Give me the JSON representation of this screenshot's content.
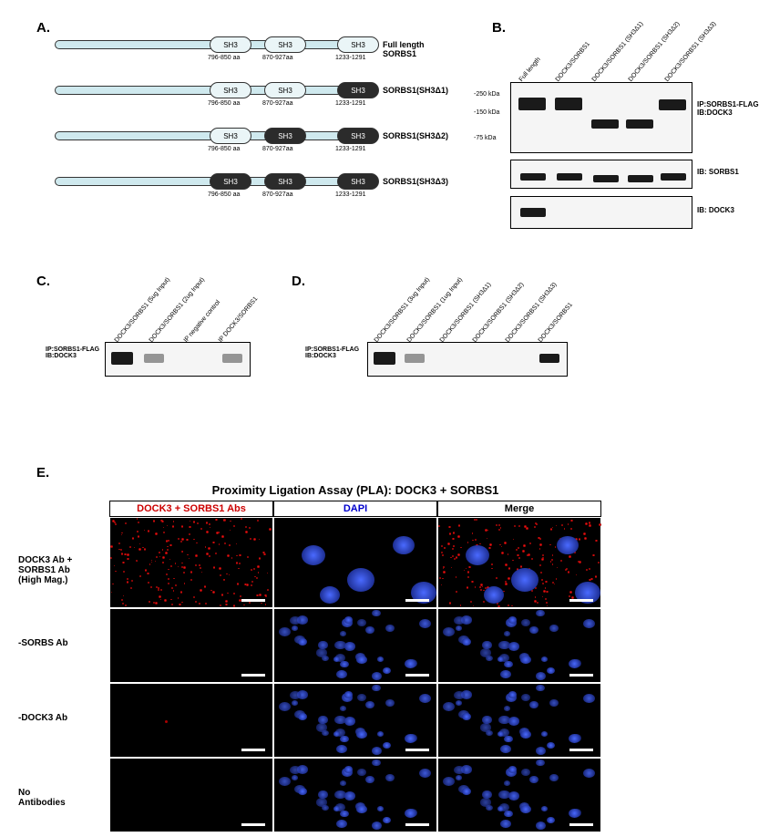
{
  "panelA": {
    "label": "A.",
    "domain_positions": [
      170,
      230,
      310
    ],
    "aa_labels": [
      "796-850 aa",
      "870-927aa",
      "1233-1291"
    ],
    "constructs": [
      {
        "name": "Full length SORBS1",
        "domain_states": [
          "light",
          "light",
          "light"
        ]
      },
      {
        "name": "SORBS1(SH3Δ1)",
        "domain_states": [
          "light",
          "light",
          "dark"
        ]
      },
      {
        "name": "SORBS1(SH3Δ2)",
        "domain_states": [
          "light",
          "dark",
          "dark"
        ]
      },
      {
        "name": "SORBS1(SH3Δ3)",
        "domain_states": [
          "dark",
          "dark",
          "dark"
        ]
      }
    ],
    "domain_text": "SH3",
    "colors": {
      "backbone": "#cfe9ee",
      "domain_light": "#eaf5f7",
      "domain_dark": "#2b2b2b"
    }
  },
  "panelB": {
    "label": "B.",
    "lanes": [
      "Full length",
      "DOCK3/SORBS1",
      "DOCK3/SORBS1 (SH3Δ1)",
      "DOCK3/SORBS1 (SH3Δ2)",
      "DOCK3/SORBS1 (SH3Δ3)"
    ],
    "mw_markers": [
      "-250 kDa",
      "-150 kDa",
      "-75 kDa"
    ],
    "blot_labels": [
      "IP:SORBS1-FLAG\nIB:DOCK3",
      "IB: SORBS1",
      "IB: DOCK3"
    ]
  },
  "panelC": {
    "label": "IP:SORBS1-FLAG\nIB:DOCK3",
    "lanes": [
      "DOCK3/SORBS1 (5ug Input)",
      "DOCK3/SORBS1 (2ug Input)",
      "IP negative control",
      "IP DOCK3/SORBS1"
    ]
  },
  "panelD": {
    "label": "IP:SORBS1-FLAG\nIB:DOCK3",
    "lanes": [
      "DOCK3/SORBS1 (3ug Input)",
      "DOCK3/SORBS1 (1ug Input)",
      "DOCK3/SORBS1 (SH3Δ1)",
      "DOCK3/SORBS1 (SH3Δ2)",
      "DOCK3/SORBS1 (SH3Δ3)",
      "DOCK3/SORBS1"
    ]
  },
  "panelE": {
    "label": "E.",
    "title": "Proximity Ligation Assay (PLA): DOCK3 + SORBS1",
    "columns": [
      "DOCK3 + SORBS1 Abs",
      "DAPI",
      "Merge"
    ],
    "column_colors": [
      "#cc0000",
      "#0000cc",
      "#000000"
    ],
    "rows": [
      "DOCK3 Ab +\nSORBS1 Ab\n(High Mag.)",
      "-SORBS Ab",
      "-DOCK3 Ab",
      "No\nAntibodies"
    ]
  }
}
